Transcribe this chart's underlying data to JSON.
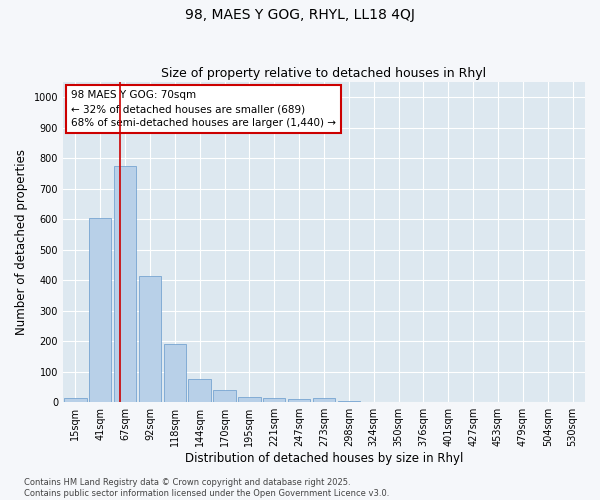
{
  "title": "98, MAES Y GOG, RHYL, LL18 4QJ",
  "subtitle": "Size of property relative to detached houses in Rhyl",
  "xlabel": "Distribution of detached houses by size in Rhyl",
  "ylabel": "Number of detached properties",
  "categories": [
    "15sqm",
    "41sqm",
    "67sqm",
    "92sqm",
    "118sqm",
    "144sqm",
    "170sqm",
    "195sqm",
    "221sqm",
    "247sqm",
    "273sqm",
    "298sqm",
    "324sqm",
    "350sqm",
    "376sqm",
    "401sqm",
    "427sqm",
    "453sqm",
    "479sqm",
    "504sqm",
    "530sqm"
  ],
  "values": [
    15,
    605,
    775,
    415,
    190,
    77,
    40,
    18,
    13,
    10,
    13,
    4,
    2,
    1,
    0,
    0,
    0,
    0,
    0,
    0,
    0
  ],
  "bar_color": "#b8d0e8",
  "bar_edge_color": "#6699cc",
  "vline_x": 1.78,
  "vline_color": "#cc0000",
  "annotation_text": "98 MAES Y GOG: 70sqm\n← 32% of detached houses are smaller (689)\n68% of semi-detached houses are larger (1,440) →",
  "annotation_box_color": "#ffffff",
  "annotation_box_edge_color": "#cc0000",
  "ylim": [
    0,
    1050
  ],
  "yticks": [
    0,
    100,
    200,
    300,
    400,
    500,
    600,
    700,
    800,
    900,
    1000
  ],
  "fig_bg_color": "#f5f7fa",
  "plot_bg_color": "#dde8f0",
  "footer": "Contains HM Land Registry data © Crown copyright and database right 2025.\nContains public sector information licensed under the Open Government Licence v3.0.",
  "title_fontsize": 10,
  "subtitle_fontsize": 9,
  "axis_label_fontsize": 8.5,
  "tick_fontsize": 7,
  "annotation_fontsize": 7.5,
  "footer_fontsize": 6
}
